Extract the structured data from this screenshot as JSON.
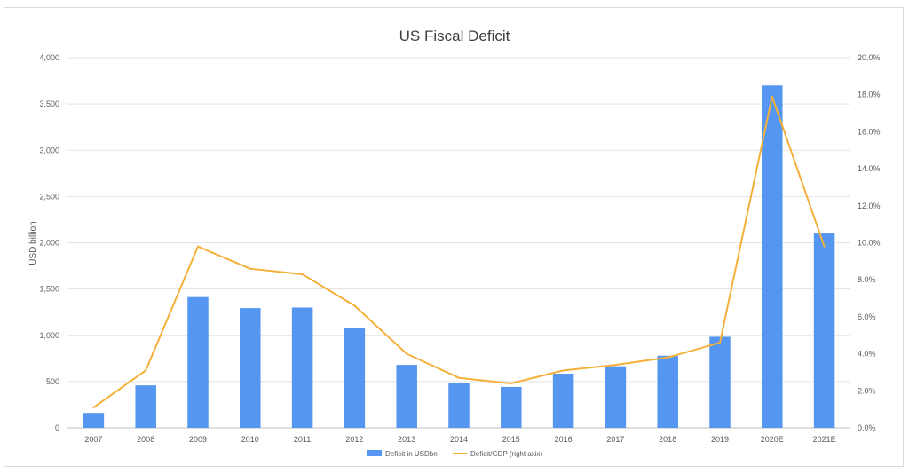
{
  "chart_data": {
    "type": "bar",
    "title": "US Fiscal Deficit",
    "ylabel": "USD billion",
    "xlabel": "",
    "categories": [
      "2007",
      "2008",
      "2009",
      "2010",
      "2011",
      "2012",
      "2013",
      "2014",
      "2015",
      "2016",
      "2017",
      "2018",
      "2019",
      "2020E",
      "2021E"
    ],
    "series": [
      {
        "name": "Deficit in USDbn",
        "type": "bar",
        "axis": "left",
        "color": "#5596f0",
        "values": [
          161,
          459,
          1413,
          1294,
          1300,
          1077,
          680,
          485,
          442,
          585,
          665,
          779,
          984,
          3700,
          2100
        ]
      },
      {
        "name": "Deficit/GDP (right axix)",
        "type": "line",
        "axis": "right",
        "color": "#f5b03a",
        "values": [
          1.1,
          3.1,
          9.8,
          8.6,
          8.3,
          6.6,
          4.0,
          2.7,
          2.4,
          3.1,
          3.4,
          3.8,
          4.6,
          17.9,
          9.8
        ]
      }
    ],
    "ylim_left": [
      0,
      4000
    ],
    "ylim_right": [
      0,
      20
    ],
    "yticks_left": [
      "0",
      "500",
      "1,000",
      "1,500",
      "2,000",
      "2,500",
      "3,000",
      "3,500",
      "4,000"
    ],
    "yticks_right": [
      "0.0%",
      "2.0%",
      "4.0%",
      "6.0%",
      "8.0%",
      "10.0%",
      "12.0%",
      "14.0%",
      "16.0%",
      "18.0%",
      "20.0%"
    ],
    "grid": true,
    "legend_position": "bottom"
  }
}
